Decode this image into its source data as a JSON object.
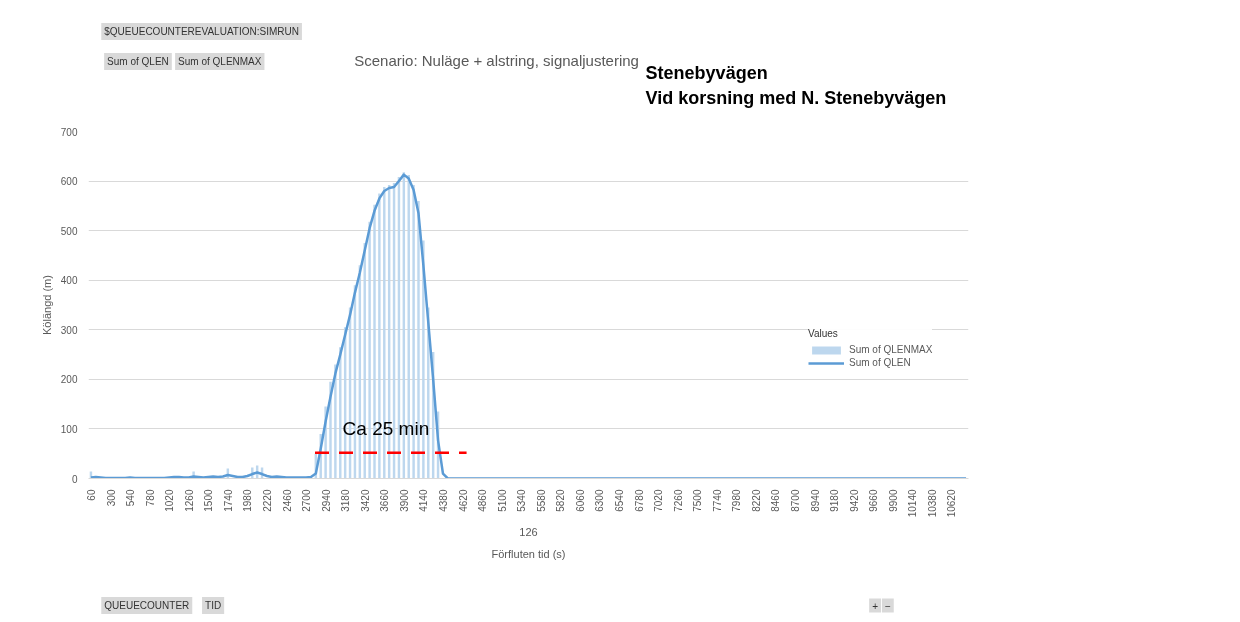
{
  "chart_data": {
    "type": "bar",
    "title": "Scenario: Nuläge + alstring, signaljustering",
    "xlabel": "Förfluten tid (s)",
    "ylabel": "Kölängd (m)",
    "legend_title": "Values",
    "annotations": [
      "$QUEUECOUNTEREVALUATION:SIMRUN",
      "Sum of QLEN",
      "Sum of QLENMAX",
      "Stenebyvägen",
      "Vid korsning med N. Stenebyvägen",
      "126",
      "QUEUECOUNTER",
      "TID",
      "+",
      "−",
      {
        "text": "Ca 25 min",
        "x": 3680,
        "y": 100
      }
    ],
    "x": [
      60,
      120,
      180,
      240,
      300,
      360,
      420,
      480,
      540,
      600,
      660,
      720,
      780,
      840,
      900,
      960,
      1020,
      1080,
      1140,
      1200,
      1260,
      1320,
      1380,
      1440,
      1500,
      1560,
      1620,
      1680,
      1740,
      1800,
      1860,
      1920,
      1980,
      2040,
      2100,
      2160,
      2220,
      2280,
      2340,
      2400,
      2460,
      2520,
      2580,
      2640,
      2700,
      2760,
      2820,
      2880,
      2940,
      3000,
      3060,
      3120,
      3180,
      3240,
      3300,
      3360,
      3420,
      3480,
      3540,
      3600,
      3660,
      3720,
      3780,
      3840,
      3900,
      3960,
      4020,
      4080,
      4140,
      4200,
      4260,
      4320,
      4380,
      4440,
      4500,
      4560,
      4620,
      4680,
      4740,
      4800,
      4860,
      4920,
      4980,
      5040,
      5100,
      5160,
      5220,
      5280,
      5340,
      5400,
      5460,
      5520,
      5580,
      5640,
      5700,
      5760,
      5820,
      5880,
      5940,
      6000,
      6060,
      6120,
      6180,
      6240,
      6300,
      6360,
      6420,
      6480,
      6540,
      6600,
      6660,
      6720,
      6780,
      6840,
      6900,
      6960,
      7020,
      7080,
      7140,
      7200,
      7260,
      7320,
      7380,
      7440,
      7500,
      7560,
      7620,
      7680,
      7740,
      7800,
      7860,
      7920,
      7980,
      8040,
      8100,
      8160,
      8220,
      8280,
      8340,
      8400,
      8460,
      8520,
      8580,
      8640,
      8700,
      8760,
      8820,
      8880,
      8940,
      9000,
      9060,
      9120,
      9180,
      9240,
      9300,
      9360,
      9420,
      9480,
      9540,
      9600,
      9660,
      9720,
      9780,
      9840,
      9900,
      9960,
      10020,
      10080,
      10140,
      10200,
      10260,
      10320,
      10380,
      10440,
      10500,
      10560,
      10620,
      10680,
      10740,
      10800
    ],
    "series": [
      {
        "name": "Sum of QLENMAX",
        "color": "#bdd7ee",
        "values": [
          14,
          null,
          null,
          null,
          null,
          null,
          null,
          null,
          null,
          null,
          null,
          null,
          null,
          null,
          null,
          null,
          null,
          null,
          null,
          null,
          null,
          14,
          null,
          null,
          null,
          null,
          null,
          null,
          20,
          null,
          null,
          null,
          null,
          22,
          26,
          22,
          null,
          null,
          null,
          null,
          null,
          null,
          null,
          null,
          null,
          null,
          50,
          90,
          145,
          195,
          230,
          265,
          305,
          345,
          390,
          430,
          475,
          518,
          552,
          575,
          588,
          592,
          596,
          608,
          618,
          612,
          592,
          560,
          480,
          345,
          255,
          135,
          null,
          null,
          0,
          0,
          0,
          0,
          0,
          0,
          0,
          0,
          0,
          0,
          0,
          0,
          0,
          0,
          0,
          0,
          0,
          0,
          0,
          0,
          0,
          0,
          0,
          0,
          0,
          0,
          0,
          0,
          0,
          0,
          0,
          0,
          0,
          0,
          0,
          0,
          0,
          0,
          0,
          0,
          0,
          0,
          0,
          0,
          0,
          0,
          0,
          0,
          0,
          0,
          0,
          0,
          0,
          0,
          0,
          0,
          0,
          0,
          0,
          0,
          0,
          0,
          0,
          0,
          0,
          0,
          0,
          0,
          0,
          0,
          0,
          0,
          0,
          0,
          0,
          0,
          0,
          0,
          0,
          0,
          0,
          0,
          0,
          0,
          0,
          0,
          0,
          0,
          0,
          0,
          0,
          0,
          0,
          0,
          0,
          0,
          0,
          0,
          0,
          0,
          0,
          0,
          0,
          0,
          0,
          0
        ]
      },
      {
        "name": "Sum of QLEN",
        "type": "line",
        "color": "#5b9bd5",
        "line_style": "solid",
        "values": [
          2,
          3,
          2,
          1,
          1,
          1,
          1,
          1,
          2,
          1,
          1,
          1,
          1,
          1,
          1,
          1,
          2,
          3,
          3,
          2,
          2,
          4,
          3,
          2,
          3,
          4,
          3,
          4,
          7,
          5,
          3,
          3,
          5,
          9,
          12,
          9,
          5,
          3,
          4,
          3,
          2,
          2,
          2,
          2,
          2,
          3,
          10,
          60,
          115,
          165,
          212,
          250,
          290,
          330,
          375,
          415,
          460,
          505,
          540,
          565,
          580,
          586,
          588,
          600,
          613,
          605,
          582,
          535,
          430,
          315,
          200,
          77,
          10,
          0,
          0,
          0,
          0,
          0,
          0,
          0,
          0,
          0,
          0,
          0,
          0,
          0,
          0,
          0,
          0,
          0,
          0,
          0,
          0,
          0,
          0,
          0,
          0,
          0,
          0,
          0,
          0,
          0,
          0,
          0,
          0,
          0,
          0,
          0,
          0,
          0,
          0,
          0,
          0,
          0,
          0,
          0,
          0,
          0,
          0,
          0,
          0,
          0,
          0,
          0,
          0,
          0,
          0,
          0,
          0,
          0,
          0,
          0,
          0,
          0,
          0,
          0,
          0,
          0,
          0,
          0,
          0,
          0,
          0,
          0,
          0,
          0,
          0,
          0,
          0,
          0,
          0,
          0,
          0,
          0,
          0,
          0,
          0,
          0,
          0,
          0,
          0,
          0,
          0,
          0,
          0,
          0,
          0,
          0,
          0,
          0,
          0,
          0,
          0,
          0,
          0,
          0,
          0,
          0,
          0,
          0
        ]
      },
      {
        "type": "line",
        "color": "#ff0000",
        "line_style": "dashed",
        "x": [
          2810,
          4670
        ],
        "values": [
          52,
          52
        ]
      }
    ],
    "xlim": [
      30,
      10830
    ],
    "xticks": [
      60,
      300,
      540,
      780,
      1020,
      1260,
      1500,
      1740,
      1980,
      2220,
      2460,
      2700,
      2940,
      3180,
      3420,
      3660,
      3900,
      4140,
      4380,
      4620,
      4860,
      5100,
      5340,
      5580,
      5820,
      6060,
      6300,
      6540,
      6780,
      7020,
      7260,
      7500,
      7740,
      7980,
      8220,
      8460,
      8700,
      8940,
      9180,
      9420,
      9660,
      9900,
      10140,
      10380,
      10620
    ],
    "ylim": [
      0,
      700
    ],
    "yticks": [
      0,
      100,
      200,
      300,
      400,
      500,
      600,
      700
    ],
    "grid": "y",
    "legend": "right"
  }
}
